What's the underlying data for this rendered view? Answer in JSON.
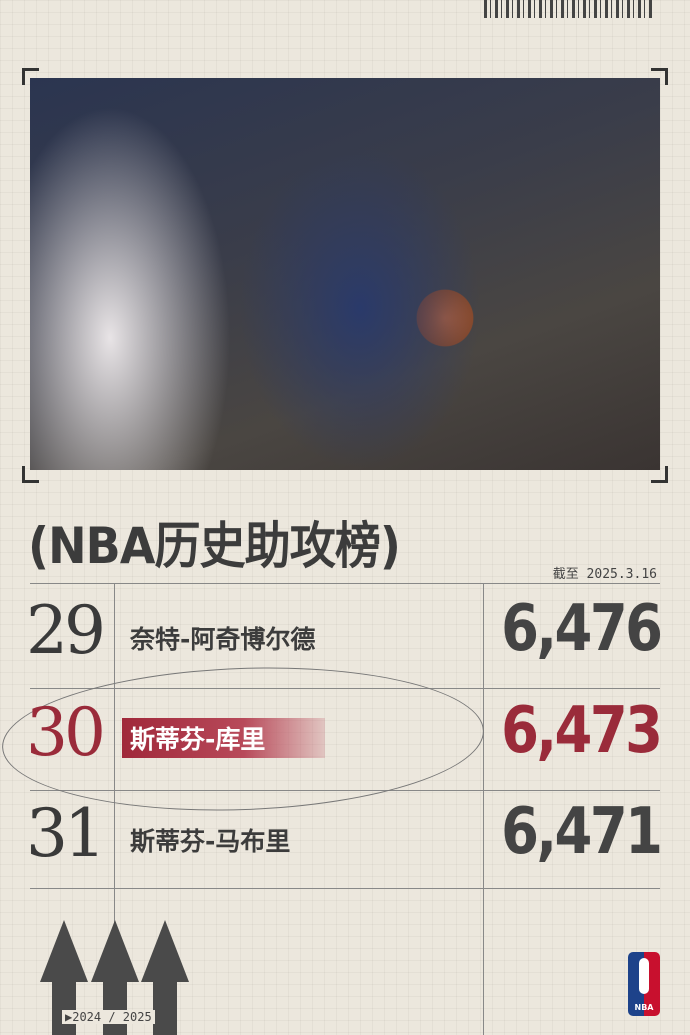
{
  "title": "(NBA历史助攻榜)",
  "as_of": "截至 2025.3.16",
  "rows": [
    {
      "rank": "29",
      "name": "奈特-阿奇博尔德",
      "assists": "6,476",
      "highlighted": false
    },
    {
      "rank": "30",
      "name": "斯蒂芬-库里",
      "assists": "6,473",
      "highlighted": true
    },
    {
      "rank": "31",
      "name": "斯蒂芬-马布里",
      "assists": "6,471",
      "highlighted": false
    }
  ],
  "season": "▶2024 / 2025",
  "logo": "NBA",
  "colors": {
    "highlight": "#9a2b3a",
    "text": "#3c3c3c",
    "nba_blue": "#1d428a",
    "nba_red": "#c8102e"
  }
}
